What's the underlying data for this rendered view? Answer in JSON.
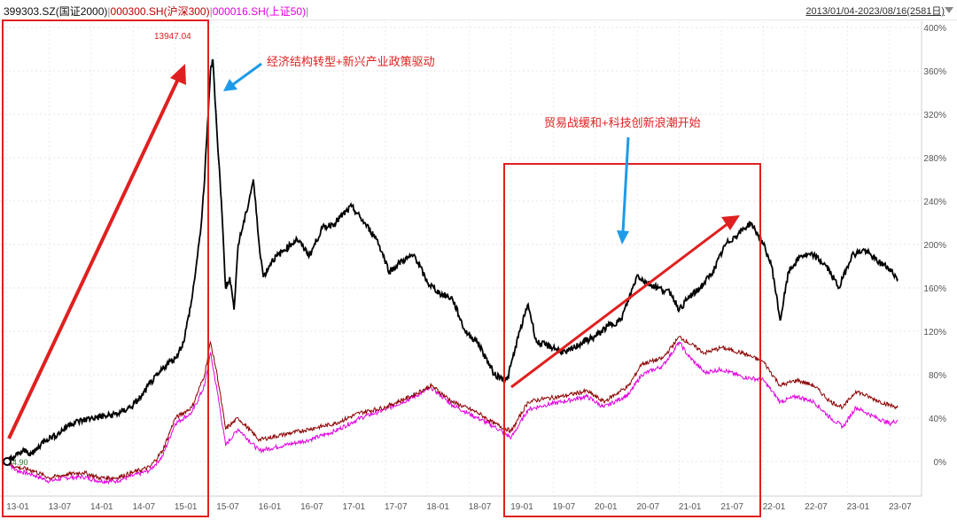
{
  "header": {
    "series_legend": [
      {
        "text": "399303.SZ(国证2000)",
        "color": "#111111"
      },
      {
        "text": " | ",
        "color": "#888888"
      },
      {
        "text": "000300.SH(沪深300)",
        "color": "#c00000"
      },
      {
        "text": " | ",
        "color": "#888888"
      },
      {
        "text": "000016.SH(上证50)",
        "color": "#e000e0"
      },
      {
        "text": " |",
        "color": "#888888"
      }
    ],
    "date_range": "2013/01/04-2023/08/16(2581日)",
    "dropdown_icon": "triangle-down-icon"
  },
  "annotations": {
    "peak_value": "13947.04",
    "start_value": "4.90",
    "note1": "经济结构转型+新兴产业政策驱动",
    "note2": "贸易战缓和+科技创新浪潮开始",
    "colors": {
      "highlight": "#e02020",
      "arrow_blue": "#1e9be8"
    }
  },
  "chart_data": {
    "type": "line",
    "ylim": [
      -10,
      400
    ],
    "yticks": [
      "0%",
      "40%",
      "80%",
      "120%",
      "160%",
      "200%",
      "240%",
      "280%",
      "320%",
      "360%",
      "400%"
    ],
    "ytick_values": [
      0,
      40,
      80,
      120,
      160,
      200,
      240,
      280,
      320,
      360,
      400
    ],
    "xticks": [
      "13-01",
      "13-07",
      "14-01",
      "14-07",
      "15-01",
      "15-07",
      "16-01",
      "16-07",
      "17-01",
      "17-07",
      "18-01",
      "18-07",
      "19-01",
      "19-07",
      "20-01",
      "20-07",
      "21-01",
      "21-07",
      "22-01",
      "22-07",
      "23-01",
      "23-07"
    ],
    "xlim": [
      2013.0,
      2023.65
    ],
    "series": [
      {
        "name": "399303.SZ(国证2000)",
        "color": "#000000",
        "points": [
          [
            2013.0,
            0
          ],
          [
            2013.1,
            5
          ],
          [
            2013.2,
            10
          ],
          [
            2013.3,
            7
          ],
          [
            2013.45,
            20
          ],
          [
            2013.6,
            25
          ],
          [
            2013.75,
            35
          ],
          [
            2013.9,
            38
          ],
          [
            2014.0,
            40
          ],
          [
            2014.2,
            42
          ],
          [
            2014.35,
            45
          ],
          [
            2014.5,
            52
          ],
          [
            2014.6,
            60
          ],
          [
            2014.7,
            72
          ],
          [
            2014.8,
            80
          ],
          [
            2014.9,
            90
          ],
          [
            2015.0,
            95
          ],
          [
            2015.1,
            110
          ],
          [
            2015.2,
            150
          ],
          [
            2015.3,
            210
          ],
          [
            2015.35,
            260
          ],
          [
            2015.42,
            360
          ],
          [
            2015.45,
            370
          ],
          [
            2015.5,
            300
          ],
          [
            2015.55,
            240
          ],
          [
            2015.6,
            160
          ],
          [
            2015.65,
            170
          ],
          [
            2015.7,
            140
          ],
          [
            2015.75,
            200
          ],
          [
            2015.85,
            230
          ],
          [
            2015.93,
            260
          ],
          [
            2016.0,
            200
          ],
          [
            2016.05,
            170
          ],
          [
            2016.15,
            185
          ],
          [
            2016.3,
            195
          ],
          [
            2016.45,
            205
          ],
          [
            2016.6,
            190
          ],
          [
            2016.75,
            215
          ],
          [
            2016.9,
            220
          ],
          [
            2017.1,
            235
          ],
          [
            2017.25,
            220
          ],
          [
            2017.4,
            205
          ],
          [
            2017.55,
            175
          ],
          [
            2017.7,
            185
          ],
          [
            2017.85,
            190
          ],
          [
            2018.0,
            165
          ],
          [
            2018.15,
            155
          ],
          [
            2018.3,
            150
          ],
          [
            2018.45,
            120
          ],
          [
            2018.6,
            110
          ],
          [
            2018.8,
            80
          ],
          [
            2018.95,
            75
          ],
          [
            2019.1,
            120
          ],
          [
            2019.2,
            145
          ],
          [
            2019.3,
            110
          ],
          [
            2019.5,
            105
          ],
          [
            2019.65,
            100
          ],
          [
            2019.85,
            110
          ],
          [
            2020.0,
            115
          ],
          [
            2020.15,
            125
          ],
          [
            2020.3,
            130
          ],
          [
            2020.4,
            150
          ],
          [
            2020.5,
            172
          ],
          [
            2020.6,
            165
          ],
          [
            2020.75,
            160
          ],
          [
            2020.9,
            155
          ],
          [
            2021.0,
            140
          ],
          [
            2021.1,
            150
          ],
          [
            2021.25,
            160
          ],
          [
            2021.4,
            175
          ],
          [
            2021.55,
            200
          ],
          [
            2021.7,
            210
          ],
          [
            2021.85,
            220
          ],
          [
            2022.0,
            200
          ],
          [
            2022.1,
            180
          ],
          [
            2022.2,
            130
          ],
          [
            2022.3,
            175
          ],
          [
            2022.45,
            190
          ],
          [
            2022.6,
            190
          ],
          [
            2022.75,
            180
          ],
          [
            2022.9,
            160
          ],
          [
            2023.05,
            190
          ],
          [
            2023.2,
            195
          ],
          [
            2023.35,
            185
          ],
          [
            2023.5,
            178
          ],
          [
            2023.6,
            168
          ]
        ]
      },
      {
        "name": "000300.SH(沪深300)",
        "color": "#8b0000",
        "points": [
          [
            2013.0,
            0
          ],
          [
            2013.1,
            -5
          ],
          [
            2013.3,
            -8
          ],
          [
            2013.5,
            -15
          ],
          [
            2013.7,
            -12
          ],
          [
            2013.9,
            -10
          ],
          [
            2014.1,
            -15
          ],
          [
            2014.3,
            -15
          ],
          [
            2014.5,
            -10
          ],
          [
            2014.7,
            -5
          ],
          [
            2014.85,
            10
          ],
          [
            2015.0,
            40
          ],
          [
            2015.2,
            50
          ],
          [
            2015.35,
            80
          ],
          [
            2015.42,
            110
          ],
          [
            2015.5,
            80
          ],
          [
            2015.6,
            30
          ],
          [
            2015.75,
            40
          ],
          [
            2016.0,
            20
          ],
          [
            2016.3,
            25
          ],
          [
            2016.6,
            30
          ],
          [
            2016.9,
            35
          ],
          [
            2017.2,
            45
          ],
          [
            2017.5,
            50
          ],
          [
            2017.8,
            60
          ],
          [
            2018.05,
            70
          ],
          [
            2018.3,
            55
          ],
          [
            2018.6,
            45
          ],
          [
            2018.8,
            35
          ],
          [
            2019.0,
            28
          ],
          [
            2019.2,
            55
          ],
          [
            2019.4,
            58
          ],
          [
            2019.6,
            60
          ],
          [
            2019.9,
            65
          ],
          [
            2020.1,
            55
          ],
          [
            2020.4,
            70
          ],
          [
            2020.55,
            90
          ],
          [
            2020.8,
            95
          ],
          [
            2021.0,
            115
          ],
          [
            2021.1,
            110
          ],
          [
            2021.3,
            100
          ],
          [
            2021.5,
            105
          ],
          [
            2021.75,
            100
          ],
          [
            2022.0,
            92
          ],
          [
            2022.2,
            70
          ],
          [
            2022.4,
            75
          ],
          [
            2022.6,
            70
          ],
          [
            2022.8,
            55
          ],
          [
            2022.95,
            50
          ],
          [
            2023.1,
            65
          ],
          [
            2023.3,
            58
          ],
          [
            2023.5,
            52
          ],
          [
            2023.6,
            50
          ]
        ]
      },
      {
        "name": "000016.SH(上证50)",
        "color": "#e000e0",
        "points": [
          [
            2013.0,
            0
          ],
          [
            2013.1,
            -8
          ],
          [
            2013.3,
            -12
          ],
          [
            2013.5,
            -18
          ],
          [
            2013.7,
            -15
          ],
          [
            2013.9,
            -14
          ],
          [
            2014.1,
            -18
          ],
          [
            2014.3,
            -18
          ],
          [
            2014.5,
            -13
          ],
          [
            2014.7,
            -8
          ],
          [
            2014.85,
            5
          ],
          [
            2015.0,
            35
          ],
          [
            2015.2,
            45
          ],
          [
            2015.35,
            70
          ],
          [
            2015.42,
            100
          ],
          [
            2015.5,
            65
          ],
          [
            2015.6,
            15
          ],
          [
            2015.75,
            30
          ],
          [
            2016.0,
            10
          ],
          [
            2016.3,
            15
          ],
          [
            2016.6,
            20
          ],
          [
            2016.9,
            28
          ],
          [
            2017.2,
            40
          ],
          [
            2017.5,
            48
          ],
          [
            2017.8,
            58
          ],
          [
            2018.05,
            68
          ],
          [
            2018.3,
            52
          ],
          [
            2018.6,
            40
          ],
          [
            2018.8,
            32
          ],
          [
            2019.0,
            22
          ],
          [
            2019.2,
            48
          ],
          [
            2019.4,
            52
          ],
          [
            2019.6,
            55
          ],
          [
            2019.9,
            60
          ],
          [
            2020.1,
            50
          ],
          [
            2020.4,
            62
          ],
          [
            2020.55,
            80
          ],
          [
            2020.8,
            88
          ],
          [
            2021.0,
            110
          ],
          [
            2021.1,
            98
          ],
          [
            2021.3,
            82
          ],
          [
            2021.5,
            85
          ],
          [
            2021.75,
            78
          ],
          [
            2022.0,
            75
          ],
          [
            2022.2,
            55
          ],
          [
            2022.4,
            60
          ],
          [
            2022.6,
            55
          ],
          [
            2022.8,
            40
          ],
          [
            2022.95,
            32
          ],
          [
            2023.1,
            50
          ],
          [
            2023.3,
            42
          ],
          [
            2023.5,
            35
          ],
          [
            2023.6,
            38
          ]
        ]
      }
    ]
  }
}
